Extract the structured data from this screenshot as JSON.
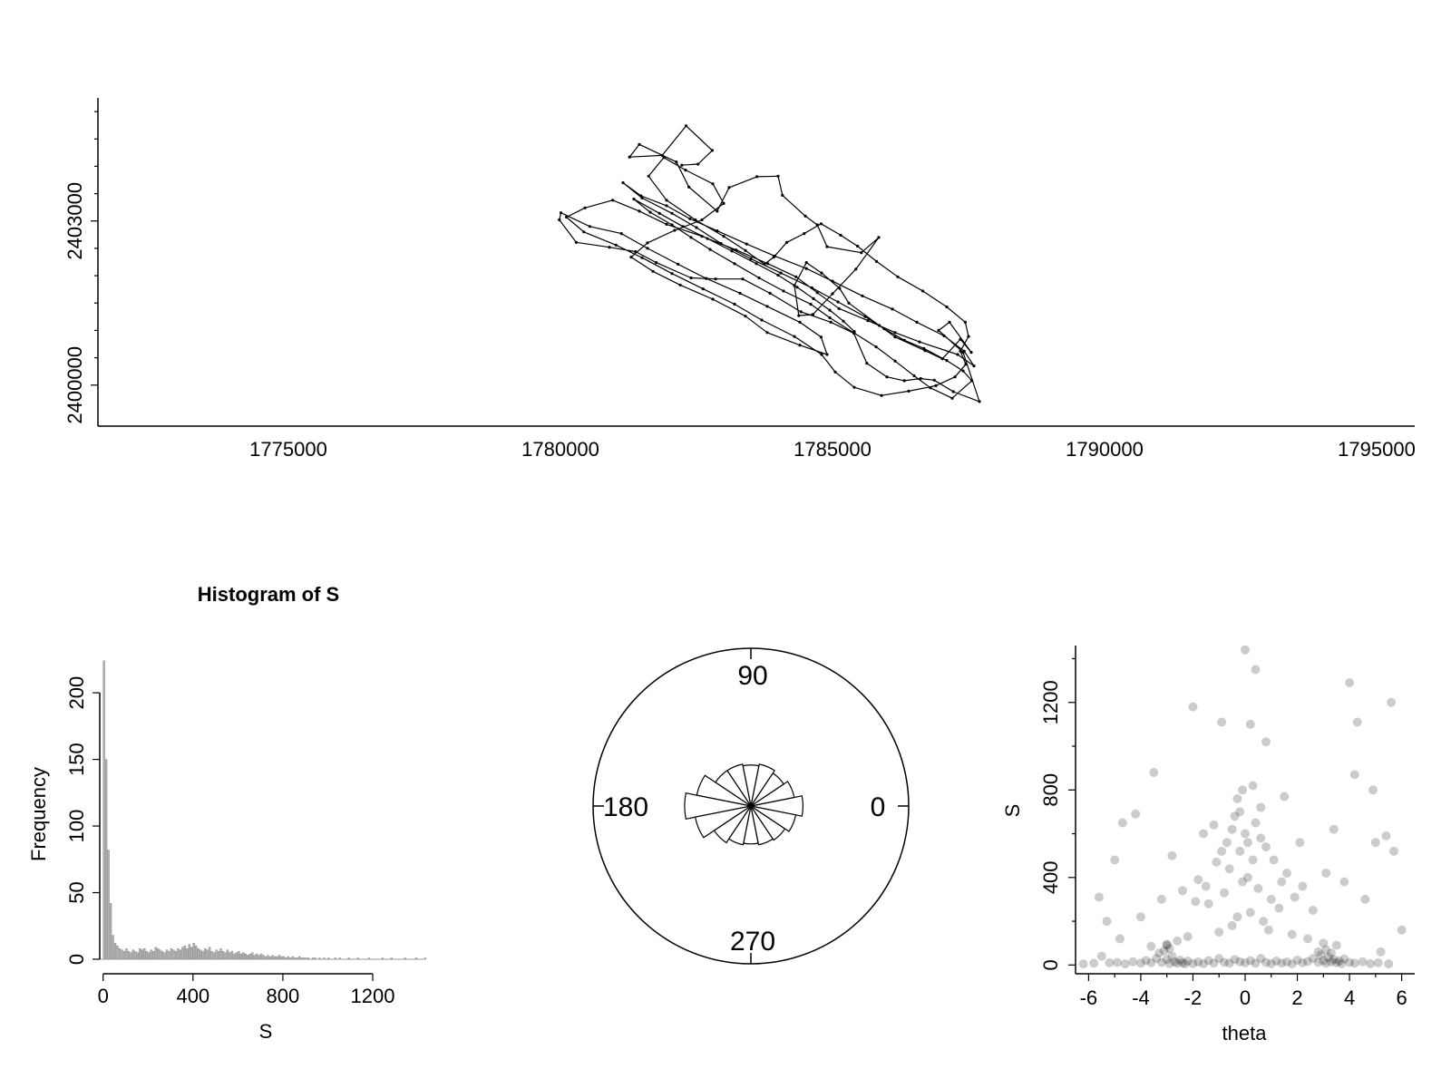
{
  "chart_data": [
    {
      "type": "line",
      "xlim": [
        1771500,
        1795700
      ],
      "ylim": [
        2399250,
        2405250
      ],
      "x_ticks": [
        "1775000",
        "1780000",
        "1785000",
        "1790000",
        "1795000"
      ],
      "y_ticks": [
        "2400000",
        "2403000"
      ],
      "xlabel": "",
      "ylabel": "",
      "grid": false,
      "track": {
        "x": [
          1782230,
          1782530,
          1782790,
          1782310,
          1781870,
          1781270,
          1781450,
          1782130,
          1782360,
          1782880,
          1783100,
          1783610,
          1784000,
          1784080,
          1784500,
          1784720,
          1784900,
          1785530,
          1785850,
          1785430,
          1785000,
          1784640,
          1784380,
          1784300,
          1784520,
          1784800,
          1785130,
          1785300,
          1785860,
          1786150,
          1786700,
          1787020,
          1787350,
          1787550,
          1787150,
          1786950,
          1787400,
          1787700,
          1787220,
          1786870,
          1786620,
          1786320,
          1786000,
          1785630,
          1785390,
          1784970,
          1784420,
          1783850,
          1783350,
          1782850,
          1782400,
          1781760,
          1781380,
          1780900,
          1780290,
          1779980,
          1780010,
          1780540,
          1781120,
          1781600,
          1782160,
          1782680,
          1783300,
          1783800,
          1784400,
          1784790,
          1784900,
          1784400,
          1783800,
          1783400,
          1782800,
          1782200,
          1781700,
          1781300,
          1781600,
          1782100,
          1782600,
          1783000,
          1782800,
          1782300,
          1781900,
          1781620,
          1781950,
          1782480,
          1783000,
          1783400,
          1783750,
          1783920,
          1784160,
          1784480,
          1784790,
          1785150,
          1785460,
          1785810,
          1786200,
          1786660,
          1787100,
          1787440,
          1787500,
          1787350,
          1787450,
          1787250,
          1786900,
          1786400,
          1785900,
          1785400,
          1785050,
          1784800,
          1784300,
          1783700,
          1783200,
          1782620,
          1782050,
          1781500,
          1781020,
          1780430,
          1780110,
          1780450,
          1780960,
          1781450,
          1781950,
          1782600,
          1783230,
          1783810,
          1784330,
          1784720,
          1785120,
          1785650,
          1786150,
          1786600,
          1787300,
          1787600,
          1787420,
          1787050,
          1786550,
          1786100,
          1785550,
          1785000,
          1784520,
          1783940,
          1783420,
          1782880,
          1782380,
          1781950,
          1781480,
          1781150,
          1781500,
          1782050,
          1782500,
          1782950,
          1783500,
          1784050,
          1784620,
          1785100,
          1785600,
          1785950,
          1786320,
          1786680,
          1787100,
          1787400,
          1787560,
          1787200,
          1786800,
          1786500,
          1786150,
          1785800,
          1785400,
          1784950,
          1784600,
          1784100,
          1783650,
          1783200,
          1782750,
          1782400,
          1782050,
          1781650,
          1781350,
          1781820,
          1782250,
          1782700,
          1783150,
          1783600,
          1784000,
          1784350,
          1784650,
          1784950,
          1785200,
          1785400
        ],
        "y": [
          2404020,
          2404040,
          2404290,
          2404740,
          2404200,
          2404170,
          2404400,
          2404080,
          2403620,
          2403180,
          2403610,
          2403810,
          2403820,
          2403470,
          2403090,
          2402930,
          2402530,
          2402420,
          2402700,
          2402120,
          2401670,
          2401290,
          2401270,
          2401820,
          2402240,
          2402050,
          2401770,
          2401500,
          2401090,
          2400880,
          2400630,
          2400480,
          2400840,
          2400600,
          2401150,
          2401000,
          2400600,
          2399700,
          2399880,
          2400090,
          2400120,
          2400080,
          2400150,
          2400400,
          2400950,
          2401150,
          2401340,
          2401680,
          2401940,
          2401940,
          2401960,
          2402240,
          2402440,
          2402520,
          2402610,
          2403020,
          2403150,
          2402900,
          2402770,
          2402500,
          2402210,
          2401950,
          2401680,
          2401440,
          2401150,
          2400880,
          2400560,
          2400730,
          2400960,
          2401260,
          2401570,
          2401830,
          2402080,
          2402340,
          2402600,
          2402830,
          2403020,
          2403320,
          2403680,
          2403930,
          2404160,
          2403820,
          2403380,
          2403020,
          2402720,
          2402460,
          2402210,
          2402340,
          2402610,
          2402770,
          2402950,
          2402740,
          2402540,
          2402260,
          2401980,
          2401720,
          2401430,
          2401150,
          2400890,
          2400620,
          2400380,
          2400150,
          2399990,
          2399890,
          2399810,
          2399960,
          2400240,
          2400560,
          2400890,
          2401190,
          2401480,
          2401760,
          2402040,
          2402330,
          2402560,
          2402800,
          2403070,
          2403240,
          2403380,
          2403180,
          2402940,
          2402720,
          2402470,
          2402220,
          2401980,
          2401690,
          2401400,
          2401180,
          2400960,
          2400790,
          2400560,
          2400350,
          2400620,
          2400900,
          2401150,
          2401390,
          2401630,
          2401900,
          2402130,
          2402360,
          2402580,
          2402820,
          2403040,
          2403280,
          2403460,
          2403700,
          2403420,
          2403140,
          2402880,
          2402590,
          2402310,
          2402050,
          2401780,
          2401520,
          2401250,
          2401030,
          2400820,
          2400670,
          2400450,
          2400260,
          2400080,
          2399760,
          2399950,
          2400170,
          2400440,
          2400700,
          2400950,
          2401230,
          2401480,
          2401720,
          2401960,
          2402220,
          2402480,
          2402700,
          2402930,
          2403160,
          2403400,
          2403140,
          2402900,
          2402680,
          2402450,
          2402220,
          2402010,
          2401790,
          2401580,
          2401370,
          2401170,
          2400980
        ]
      }
    },
    {
      "type": "bar",
      "title": "Histogram of S",
      "xlabel": "S",
      "ylabel": "Frequency",
      "bin_width": 10,
      "xlim": [
        -15,
        1430
      ],
      "ylim": [
        0,
        230
      ],
      "x_ticks": [
        0,
        400,
        800,
        1200
      ],
      "y_ticks": [
        0,
        50,
        100,
        150,
        200
      ],
      "values": [
        224,
        150,
        82,
        42,
        18,
        12,
        10,
        8,
        7,
        6,
        8,
        6,
        5,
        7,
        6,
        5,
        8,
        7,
        8,
        6,
        5,
        7,
        6,
        9,
        8,
        7,
        6,
        5,
        7,
        6,
        8,
        7,
        6,
        8,
        7,
        9,
        10,
        8,
        11,
        9,
        12,
        10,
        8,
        7,
        6,
        8,
        7,
        9,
        6,
        5,
        7,
        6,
        8,
        6,
        5,
        7,
        5,
        6,
        4,
        5,
        6,
        4,
        5,
        4,
        3,
        4,
        5,
        3,
        4,
        3,
        4,
        3,
        2,
        3,
        2,
        3,
        2,
        2,
        3,
        2,
        2,
        1,
        2,
        1,
        2,
        1,
        1,
        2,
        1,
        1,
        1,
        1,
        0,
        1,
        1,
        0,
        1,
        0,
        1,
        0,
        1,
        0,
        0,
        1,
        0,
        1,
        0,
        0,
        0,
        1,
        0,
        0,
        0,
        1,
        0,
        0,
        0,
        0,
        1,
        0,
        0,
        0,
        0,
        0,
        1,
        0,
        0,
        0,
        1,
        0,
        0,
        0,
        0,
        0,
        1,
        0,
        0,
        0,
        0,
        1,
        0,
        0,
        0,
        1
      ]
    },
    {
      "type": "rose",
      "labels": [
        "90",
        "180",
        "0",
        "270"
      ],
      "directions_deg": [
        0,
        22.5,
        45,
        67.5,
        90,
        112.5,
        135,
        157.5,
        180,
        202.5,
        225,
        247.5,
        270,
        292.5,
        315,
        337.5
      ],
      "frequencies": [
        0.33,
        0.28,
        0.25,
        0.27,
        0.26,
        0.27,
        0.27,
        0.35,
        0.42,
        0.36,
        0.28,
        0.25,
        0.24,
        0.25,
        0.26,
        0.29
      ]
    },
    {
      "type": "scatter",
      "xlabel": "theta",
      "ylabel": "S",
      "xlim": [
        -6.5,
        6.5
      ],
      "ylim": [
        -40,
        1460
      ],
      "x_ticks": [
        -6,
        -4,
        -2,
        0,
        2,
        4,
        6
      ],
      "y_ticks": [
        0,
        400,
        800,
        1200
      ],
      "point_color": "#000000",
      "point_alpha": 0.2,
      "points": [
        [
          0,
          1440
        ],
        [
          0.4,
          1350
        ],
        [
          4.0,
          1290
        ],
        [
          5.6,
          1200
        ],
        [
          -2.0,
          1180
        ],
        [
          4.3,
          1110
        ],
        [
          -0.9,
          1110
        ],
        [
          0.2,
          1100
        ],
        [
          0.8,
          1020
        ],
        [
          -3.5,
          880
        ],
        [
          4.2,
          870
        ],
        [
          4.9,
          800
        ],
        [
          -4.2,
          690
        ],
        [
          -4.7,
          650
        ],
        [
          5.4,
          590
        ],
        [
          5.7,
          520
        ],
        [
          -5.0,
          480
        ],
        [
          -5.6,
          310
        ],
        [
          -5.3,
          200
        ],
        [
          6.0,
          160
        ],
        [
          5.0,
          560
        ],
        [
          3.4,
          620
        ],
        [
          2.1,
          560
        ],
        [
          1.5,
          770
        ],
        [
          0.6,
          720
        ],
        [
          -0.4,
          680
        ],
        [
          -1.2,
          640
        ],
        [
          -1.6,
          600
        ],
        [
          -2.8,
          500
        ],
        [
          -3.2,
          300
        ],
        [
          3.1,
          420
        ],
        [
          2.6,
          250
        ],
        [
          -0.2,
          520
        ],
        [
          0.3,
          480
        ],
        [
          -0.6,
          440
        ],
        [
          0.1,
          400
        ],
        [
          -0.1,
          380
        ],
        [
          0.5,
          350
        ],
        [
          -0.8,
          330
        ],
        [
          1.0,
          300
        ],
        [
          -1.4,
          280
        ],
        [
          1.3,
          260
        ],
        [
          0.2,
          240
        ],
        [
          -0.3,
          220
        ],
        [
          0.7,
          200
        ],
        [
          -0.5,
          180
        ],
        [
          0.9,
          160
        ],
        [
          -1.0,
          150
        ],
        [
          1.8,
          140
        ],
        [
          -2.2,
          130
        ],
        [
          2.4,
          120
        ],
        [
          -2.6,
          110
        ],
        [
          3.0,
          100
        ],
        [
          -3.0,
          95
        ],
        [
          3.5,
          90
        ],
        [
          -3.6,
          85
        ],
        [
          0.0,
          600
        ],
        [
          -0.2,
          700
        ],
        [
          0.4,
          650
        ],
        [
          -0.7,
          560
        ],
        [
          1.1,
          480
        ],
        [
          -1.1,
          470
        ],
        [
          1.6,
          420
        ],
        [
          -1.8,
          390
        ],
        [
          2.2,
          360
        ],
        [
          -2.4,
          340
        ],
        [
          3.8,
          380
        ],
        [
          -4.0,
          220
        ],
        [
          4.6,
          300
        ],
        [
          -4.8,
          120
        ],
        [
          5.2,
          60
        ],
        [
          -5.5,
          40
        ],
        [
          -6.2,
          5
        ],
        [
          -5.8,
          8
        ],
        [
          -5.2,
          10
        ],
        [
          -4.9,
          12
        ],
        [
          -4.6,
          5
        ],
        [
          -4.3,
          15
        ],
        [
          -4.0,
          8
        ],
        [
          -3.8,
          20
        ],
        [
          -3.6,
          10
        ],
        [
          -3.4,
          30
        ],
        [
          -3.2,
          12
        ],
        [
          -3.0,
          25
        ],
        [
          -2.9,
          6
        ],
        [
          -2.8,
          40
        ],
        [
          -2.7,
          15
        ],
        [
          -2.6,
          8
        ],
        [
          -2.5,
          22
        ],
        [
          -2.4,
          10
        ],
        [
          -2.3,
          5
        ],
        [
          -2.2,
          18
        ],
        [
          -2.0,
          7
        ],
        [
          -1.8,
          14
        ],
        [
          -1.6,
          6
        ],
        [
          -1.4,
          20
        ],
        [
          -1.2,
          9
        ],
        [
          -1.0,
          30
        ],
        [
          -0.8,
          12
        ],
        [
          -0.6,
          8
        ],
        [
          -0.4,
          25
        ],
        [
          -0.2,
          15
        ],
        [
          0.0,
          10
        ],
        [
          0.2,
          20
        ],
        [
          0.4,
          8
        ],
        [
          0.6,
          30
        ],
        [
          0.8,
          12
        ],
        [
          1.0,
          6
        ],
        [
          1.2,
          18
        ],
        [
          1.4,
          9
        ],
        [
          1.6,
          14
        ],
        [
          1.8,
          5
        ],
        [
          2.0,
          22
        ],
        [
          2.2,
          10
        ],
        [
          2.4,
          16
        ],
        [
          2.6,
          30
        ],
        [
          2.8,
          12
        ],
        [
          2.9,
          45
        ],
        [
          3.0,
          20
        ],
        [
          3.1,
          8
        ],
        [
          3.2,
          35
        ],
        [
          3.3,
          15
        ],
        [
          3.4,
          25
        ],
        [
          3.5,
          10
        ],
        [
          3.6,
          18
        ],
        [
          3.7,
          6
        ],
        [
          3.8,
          28
        ],
        [
          4.0,
          12
        ],
        [
          4.2,
          8
        ],
        [
          4.5,
          15
        ],
        [
          4.8,
          6
        ],
        [
          5.1,
          10
        ],
        [
          5.5,
          5
        ],
        [
          -3.3,
          55
        ],
        [
          -3.1,
          65
        ],
        [
          -2.9,
          75
        ],
        [
          -3.0,
          90
        ],
        [
          2.8,
          60
        ],
        [
          3.1,
          70
        ],
        [
          3.3,
          55
        ],
        [
          -0.1,
          800
        ],
        [
          0.3,
          820
        ],
        [
          -0.3,
          760
        ],
        [
          0.1,
          560
        ],
        [
          -0.5,
          620
        ],
        [
          0.6,
          580
        ],
        [
          -0.9,
          520
        ],
        [
          0.8,
          540
        ],
        [
          1.4,
          380
        ],
        [
          -1.5,
          360
        ],
        [
          1.9,
          310
        ],
        [
          -1.9,
          290
        ]
      ]
    }
  ]
}
